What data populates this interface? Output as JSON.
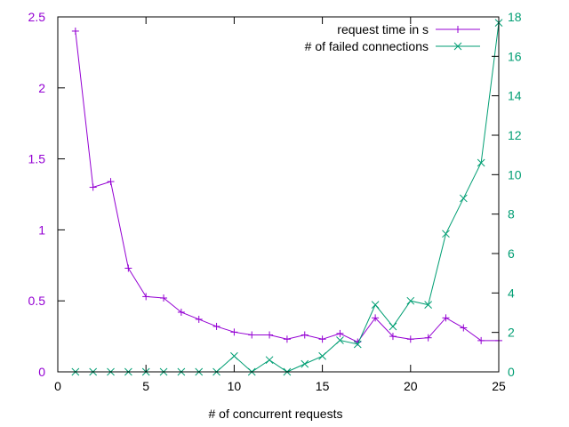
{
  "chart_data": {
    "type": "line",
    "title": "",
    "xlabel": "# of concurrent requests",
    "ylabel": "",
    "y2label": "",
    "xlim": [
      0,
      25
    ],
    "ylim": [
      0,
      2.5
    ],
    "y2lim": [
      0,
      18
    ],
    "grid": false,
    "legend_position": "top-right",
    "x_ticks": [
      {
        "value": 0,
        "label": "0"
      },
      {
        "value": 5,
        "label": "5"
      },
      {
        "value": 10,
        "label": "10"
      },
      {
        "value": 15,
        "label": "15"
      },
      {
        "value": 20,
        "label": "20"
      },
      {
        "value": 25,
        "label": "25"
      }
    ],
    "y_ticks": [
      {
        "value": 0,
        "label": "0"
      },
      {
        "value": 0.5,
        "label": "0.5"
      },
      {
        "value": 1,
        "label": "1"
      },
      {
        "value": 1.5,
        "label": "1.5"
      },
      {
        "value": 2,
        "label": "2"
      },
      {
        "value": 2.5,
        "label": "2.5"
      }
    ],
    "y2_ticks": [
      {
        "value": 0,
        "label": "0"
      },
      {
        "value": 2,
        "label": "2"
      },
      {
        "value": 4,
        "label": "4"
      },
      {
        "value": 6,
        "label": "6"
      },
      {
        "value": 8,
        "label": "8"
      },
      {
        "value": 10,
        "label": "10"
      },
      {
        "value": 12,
        "label": "12"
      },
      {
        "value": 14,
        "label": "14"
      },
      {
        "value": 16,
        "label": "16"
      },
      {
        "value": 18,
        "label": "18"
      }
    ],
    "series": [
      {
        "name": "request time in s",
        "axis": "left",
        "marker": "plus",
        "color": "#9400d3",
        "x": [
          1,
          2,
          3,
          4,
          5,
          6,
          7,
          8,
          9,
          10,
          11,
          12,
          13,
          14,
          15,
          16,
          17,
          18,
          19,
          20,
          21,
          22,
          23,
          24,
          25
        ],
        "values": [
          2.4,
          1.3,
          1.34,
          0.73,
          0.53,
          0.52,
          0.42,
          0.37,
          0.32,
          0.28,
          0.26,
          0.26,
          0.23,
          0.26,
          0.23,
          0.27,
          0.21,
          0.38,
          0.25,
          0.23,
          0.24,
          0.38,
          0.31,
          0.22,
          0.22
        ]
      },
      {
        "name": "# of failed connections",
        "axis": "right",
        "marker": "cross",
        "color": "#009e73",
        "x": [
          1,
          2,
          3,
          4,
          5,
          6,
          7,
          8,
          9,
          10,
          11,
          12,
          13,
          14,
          15,
          16,
          17,
          18,
          19,
          20,
          21,
          22,
          23,
          24,
          25
        ],
        "values": [
          0,
          0,
          0,
          0,
          0,
          0,
          0,
          0,
          0,
          0.8,
          0,
          0.6,
          0,
          0.4,
          0.8,
          1.6,
          1.4,
          3.4,
          2.3,
          3.6,
          3.4,
          7.0,
          8.8,
          10.6,
          17.7
        ]
      }
    ]
  }
}
